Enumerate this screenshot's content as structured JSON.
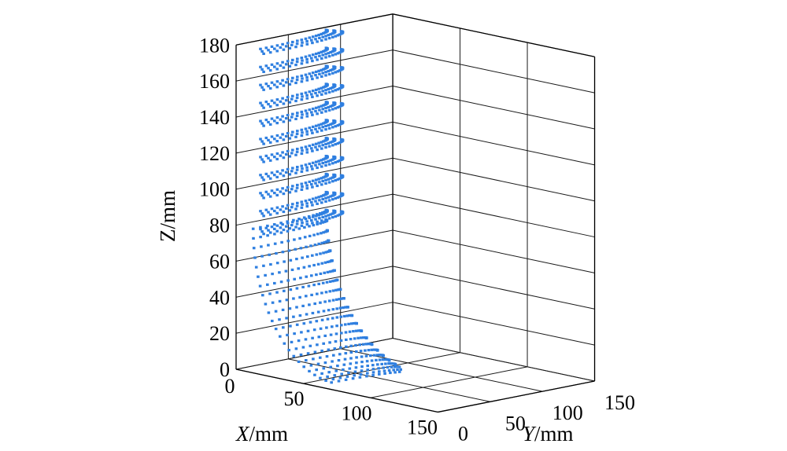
{
  "chart_data": {
    "type": "scatter",
    "title": "",
    "xlabel_var": "X",
    "xlabel_unit": "/mm",
    "ylabel_var": "Y",
    "ylabel_unit": "/mm",
    "zlabel": "Z/mm",
    "x_ticks": [
      "0",
      "50",
      "100",
      "150"
    ],
    "y_ticks": [
      "0",
      "50",
      "100",
      "150"
    ],
    "z_ticks": [
      "0",
      "20",
      "40",
      "60",
      "80",
      "100",
      "120",
      "140",
      "160",
      "180"
    ],
    "xlim": [
      0,
      150
    ],
    "ylim": [
      0,
      150
    ],
    "zlim": [
      0,
      180
    ],
    "grid": true,
    "marker_color": "#2f7fe0",
    "series": [
      {
        "description_of_shape": "curved pipe elbow surface point cloud",
        "upper_straight_section": {
          "z_range": [
            80,
            180
          ],
          "rings_every_mm": 10
        },
        "bend_section": {
          "z_range": [
            0,
            80
          ],
          "bend_radius_mm": 80,
          "tube_radius_mm": 55
        },
        "points_x_range": [
          0,
          150
        ],
        "points_y_range": [
          0,
          150
        ]
      }
    ]
  }
}
